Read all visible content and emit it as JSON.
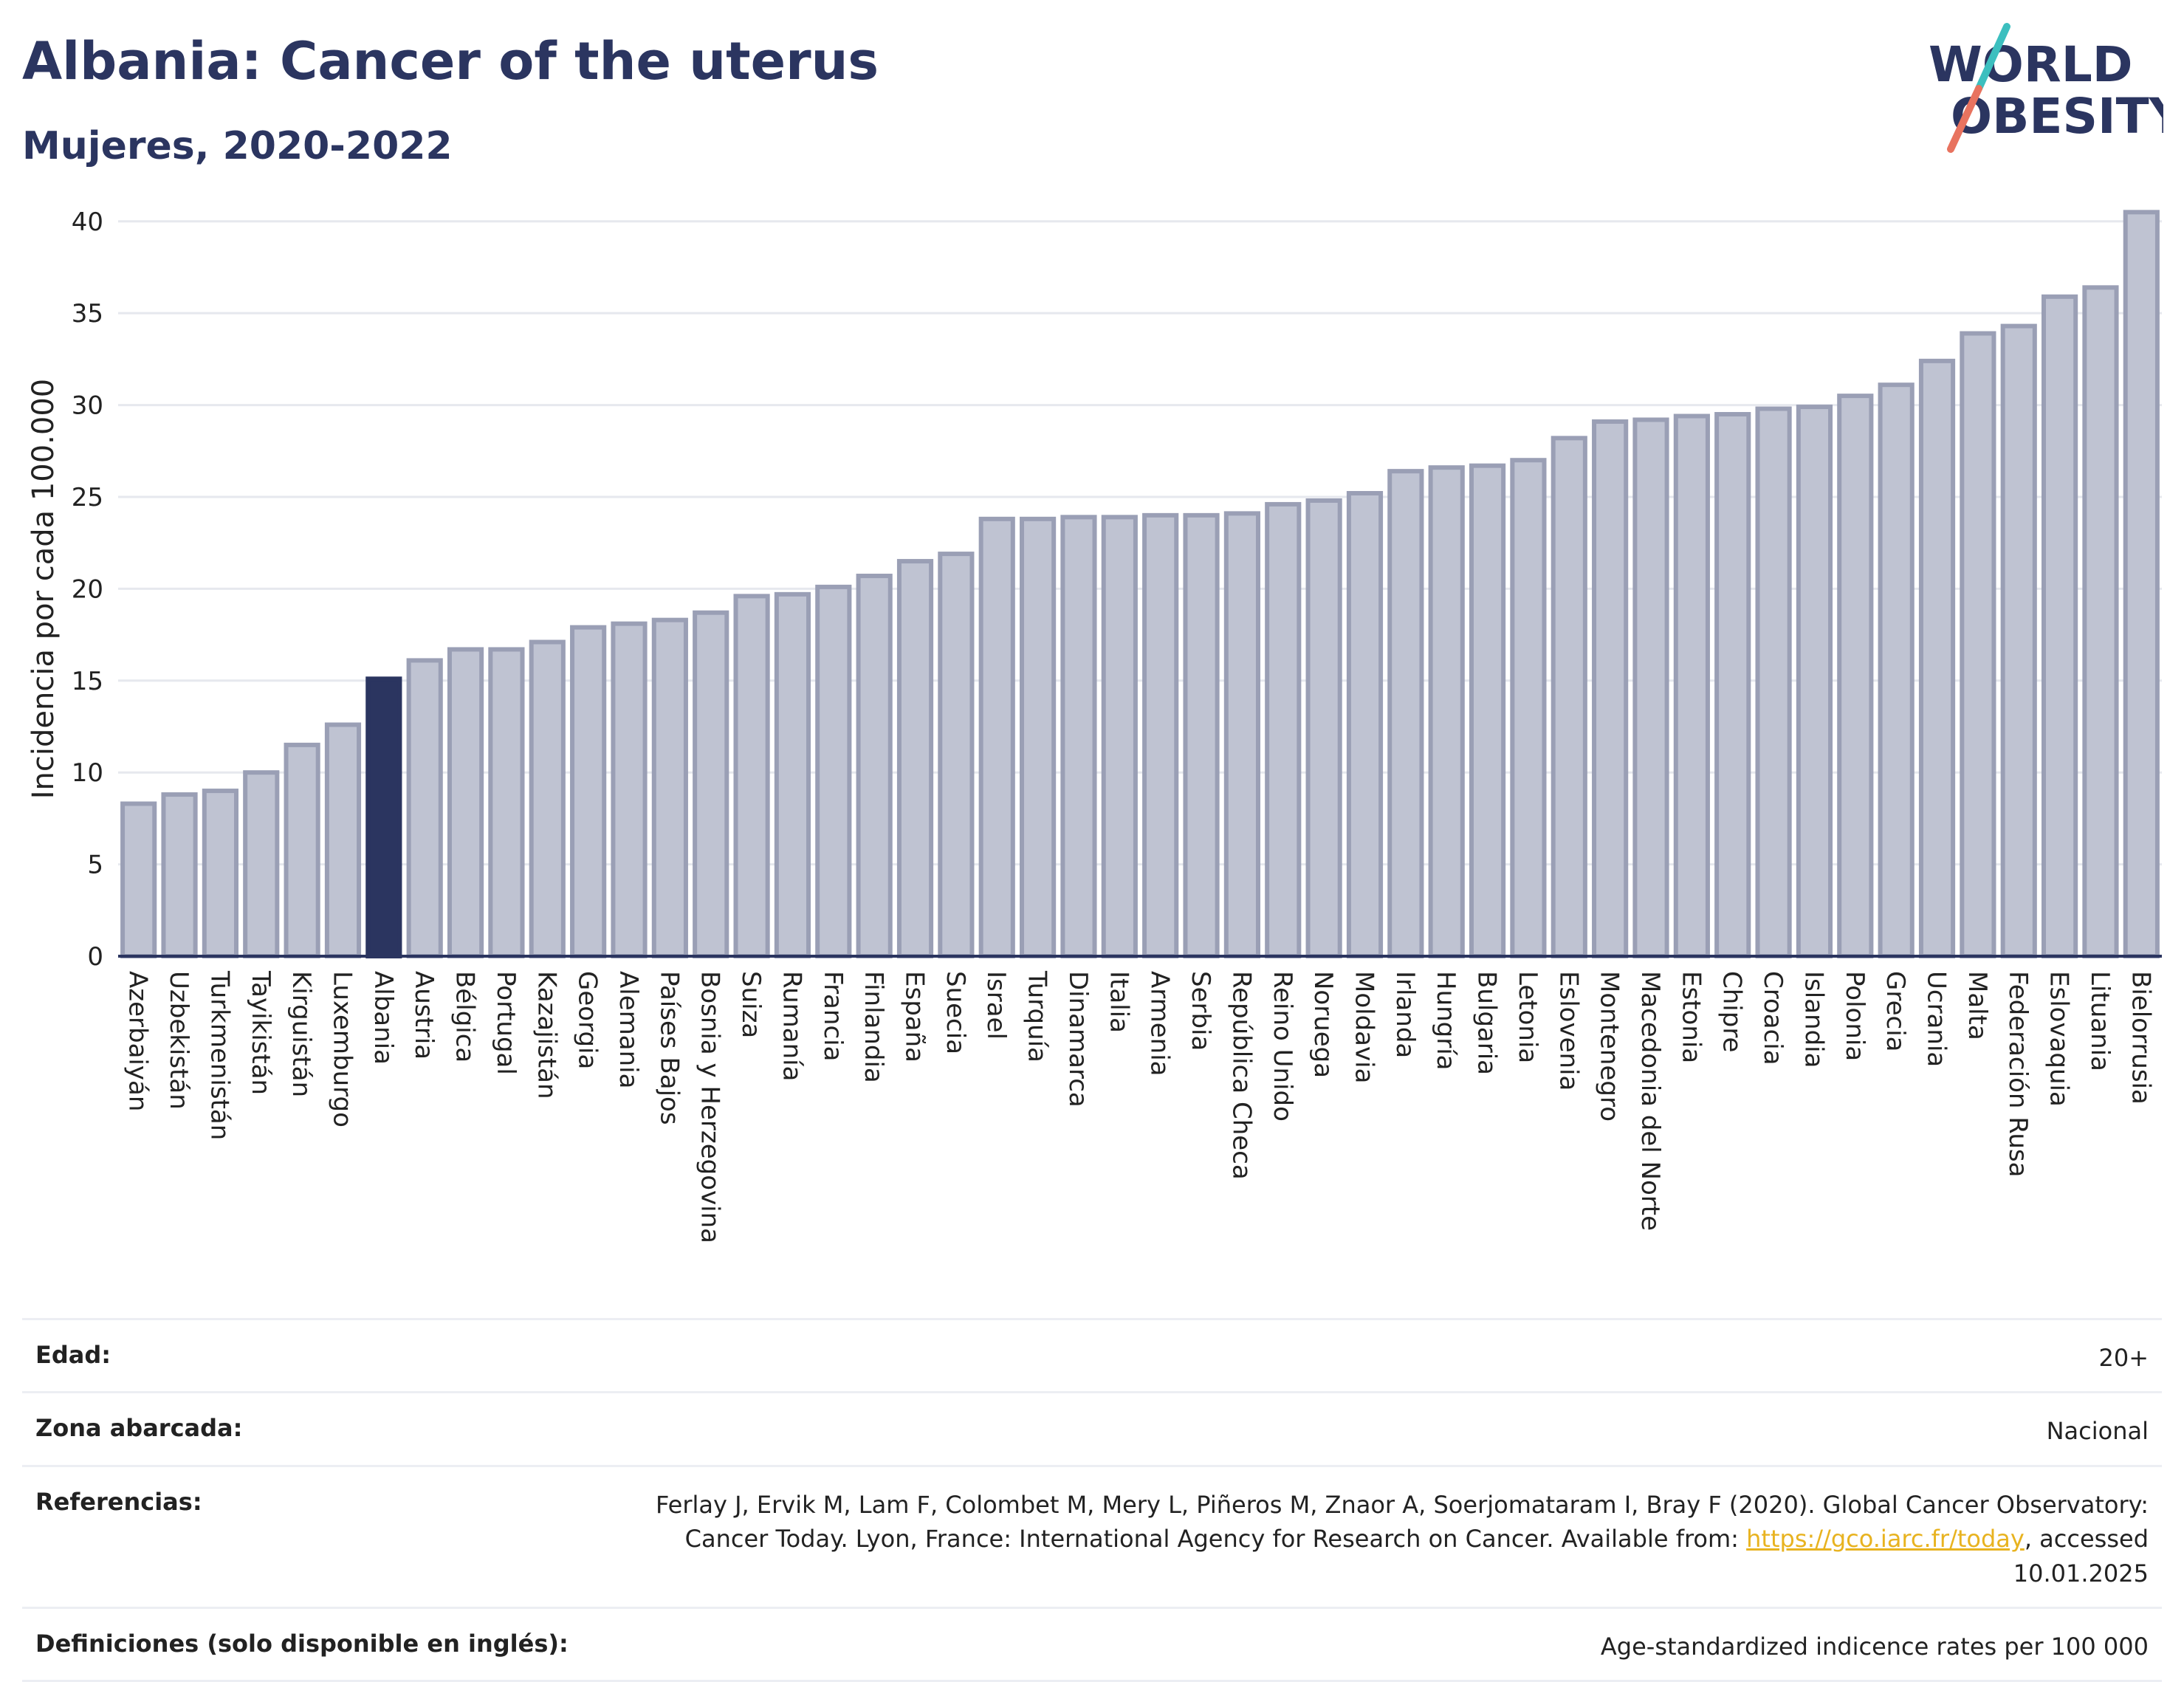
{
  "header": {
    "title": "Albania: Cancer of the uterus",
    "subtitle": "Mujeres, 2020-2022"
  },
  "logo": {
    "line1": "WORLD",
    "line2": "OBESITY"
  },
  "colors": {
    "highlight": "#2b3560",
    "bar_fill": "#bfc3d2",
    "bar_stroke": "#9a9fb5",
    "axis": "#2b3560",
    "grid": "#e6e8ee",
    "logo_teal": "#3cbfbf",
    "logo_coral": "#e8735f"
  },
  "chart_data": {
    "type": "bar",
    "highlight": "Albania",
    "ylabel": "Incidencia por cada 100.000",
    "ylim": [
      0,
      42
    ],
    "yticks": [
      0,
      5,
      10,
      15,
      20,
      25,
      30,
      35,
      40
    ],
    "grid": true,
    "categories": [
      "Azerbaiyán",
      "Uzbekistán",
      "Turkmenistán",
      "Tayikistán",
      "Kirguistán",
      "Luxemburgo",
      "Albania",
      "Austria",
      "Bélgica",
      "Portugal",
      "Kazajistán",
      "Georgia",
      "Alemania",
      "Países Bajos",
      "Bosnia y Herzegovina",
      "Suiza",
      "Rumanía",
      "Francia",
      "Finlandia",
      "España",
      "Suecia",
      "Israel",
      "Turquía",
      "Dinamarca",
      "Italia",
      "Armenia",
      "Serbia",
      "República Checa",
      "Reino Unido",
      "Noruega",
      "Moldavia",
      "Irlanda",
      "Hungría",
      "Bulgaria",
      "Letonia",
      "Eslovenia",
      "Montenegro",
      "Macedonia del Norte",
      "Estonia",
      "Chipre",
      "Croacia",
      "Islandia",
      "Polonia",
      "Grecia",
      "Ucrania",
      "Malta",
      "Federación Rusa",
      "Eslovaquia",
      "Lituania",
      "Bielorrusia"
    ],
    "values": [
      8.3,
      8.8,
      9.0,
      10.0,
      11.5,
      12.6,
      15.1,
      16.1,
      16.7,
      16.7,
      17.1,
      17.9,
      18.1,
      18.3,
      18.7,
      19.6,
      19.7,
      20.1,
      20.7,
      21.5,
      21.9,
      23.8,
      23.8,
      23.9,
      23.9,
      24.0,
      24.0,
      24.1,
      24.6,
      24.8,
      25.2,
      26.4,
      26.6,
      26.7,
      27.0,
      28.2,
      29.1,
      29.2,
      29.4,
      29.5,
      29.8,
      29.9,
      30.5,
      31.1,
      32.4,
      33.9,
      34.3,
      35.9,
      36.4,
      40.5
    ]
  },
  "info": {
    "rows": [
      {
        "label": "Edad:",
        "value": "20+"
      },
      {
        "label": "Zona abarcada:",
        "value": "Nacional"
      },
      {
        "label": "Referencias:",
        "value": "Ferlay J, Ervik M, Lam F, Colombet M, Mery L, Piñeros M, Znaor A, Soerjomataram I, Bray F (2020). Global Cancer Observatory: Cancer Today. Lyon, France: International Agency for Research on Cancer. Available from:",
        "link": "https://gco.iarc.fr/today",
        "suffix": ", accessed 10.01.2025"
      },
      {
        "label": "Definiciones (solo disponible en inglés):",
        "value": "Age-standardized indicence rates per 100 000"
      }
    ]
  }
}
